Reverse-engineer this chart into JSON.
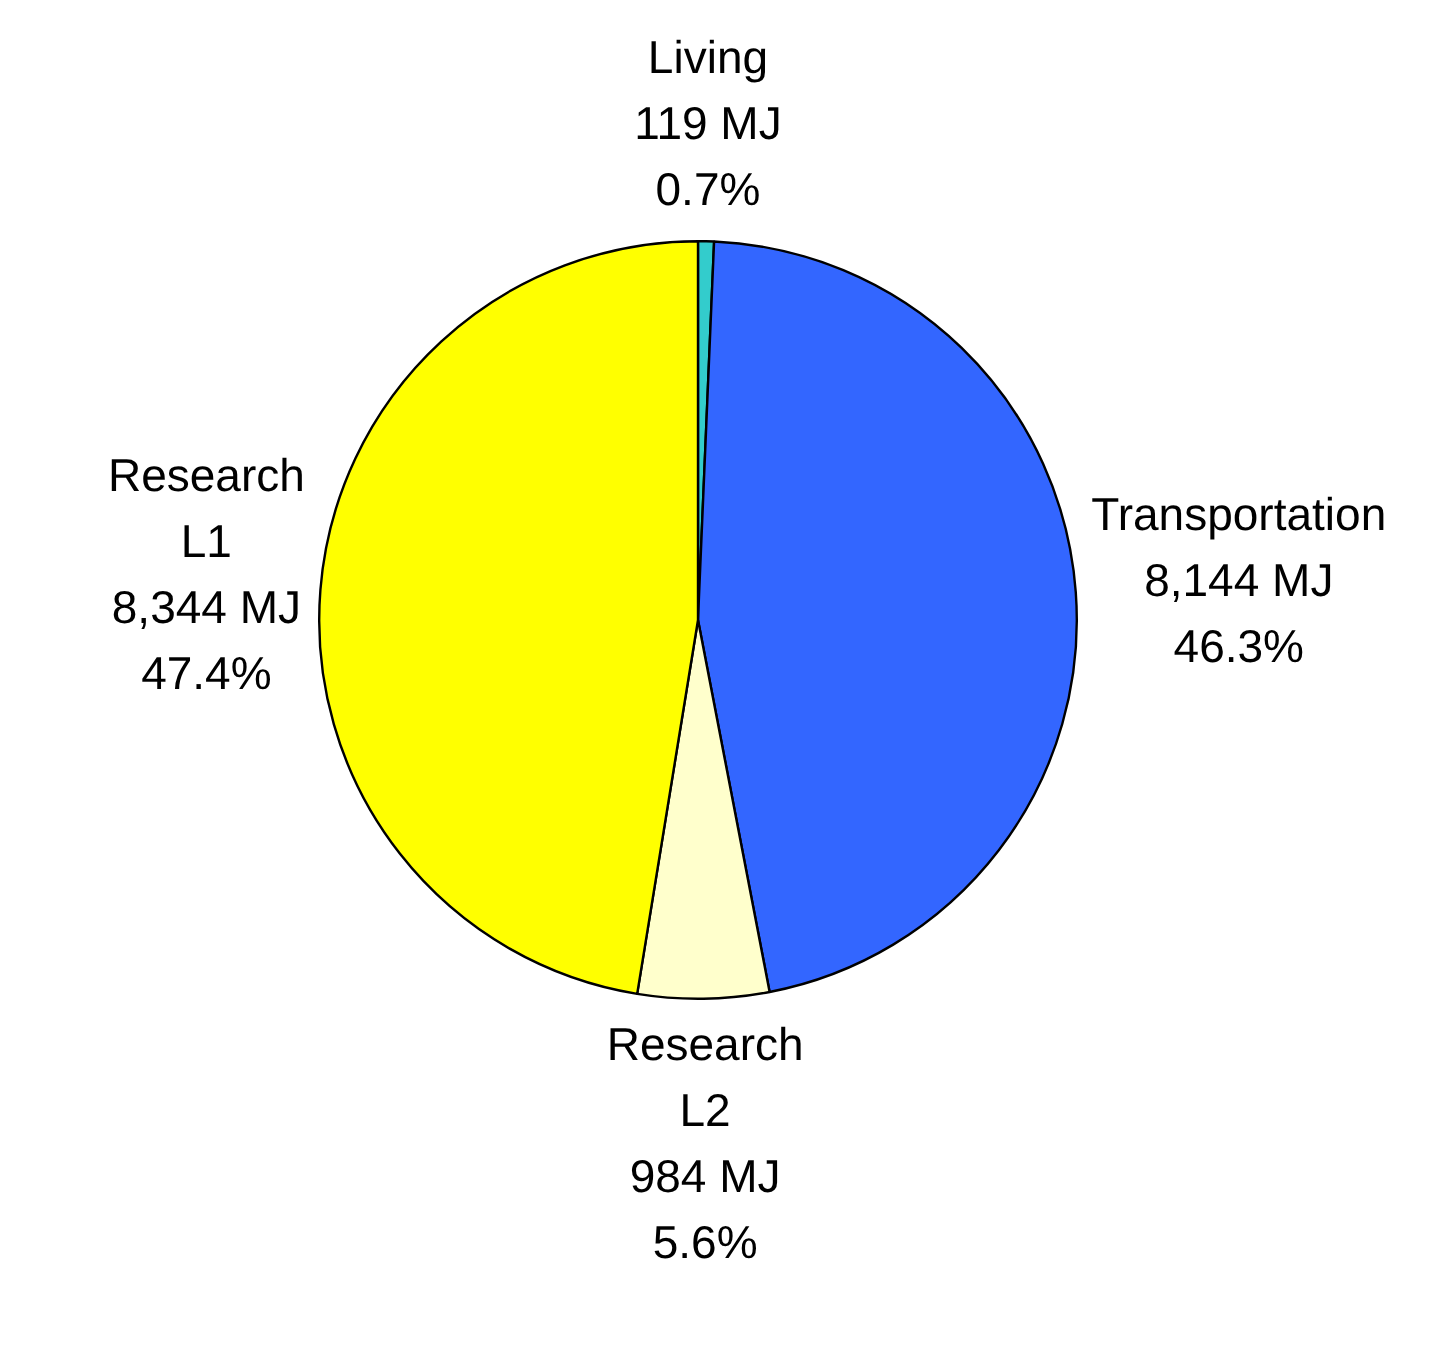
{
  "chart_data": {
    "type": "pie",
    "categories": [
      "Living",
      "Transportation",
      "Research\nL2",
      "Research\nL1"
    ],
    "values": [
      119,
      8144,
      984,
      8344
    ],
    "colors": [
      "#33cccc",
      "#3366ff",
      "#ffffcc",
      "#ffff00"
    ],
    "value_labels": [
      "119 MJ\n0.7%",
      "8,144 MJ\n46.3%",
      "984 MJ\n5.6%",
      "8,344 MJ\n47.4%"
    ],
    "legend": false
  }
}
